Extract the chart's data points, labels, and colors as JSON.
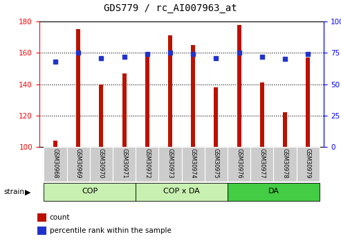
{
  "title": "GDS779 / rc_AI007963_at",
  "samples": [
    "GSM30968",
    "GSM30969",
    "GSM30970",
    "GSM30971",
    "GSM30972",
    "GSM30973",
    "GSM30974",
    "GSM30975",
    "GSM30976",
    "GSM30977",
    "GSM30978",
    "GSM30979"
  ],
  "count_values": [
    104,
    175,
    140,
    147,
    158,
    171,
    165,
    138,
    178,
    141,
    122,
    157
  ],
  "percentile_values": [
    68,
    75,
    71,
    72,
    74,
    75,
    74,
    71,
    75,
    72,
    70,
    74
  ],
  "groups": [
    {
      "label": "COP",
      "start": 0,
      "end": 3,
      "color": "#c8f0b0"
    },
    {
      "label": "COP x DA",
      "start": 4,
      "end": 7,
      "color": "#c8f0b0"
    },
    {
      "label": "DA",
      "start": 8,
      "end": 11,
      "color": "#44cc44"
    }
  ],
  "ylim_left": [
    100,
    180
  ],
  "ylim_right": [
    0,
    100
  ],
  "yticks_left": [
    100,
    120,
    140,
    160,
    180
  ],
  "yticks_right": [
    0,
    25,
    50,
    75,
    100
  ],
  "bar_color": "#bb1100",
  "dot_color": "#2233cc",
  "strain_label": "strain",
  "legend_count": "count",
  "legend_percentile": "percentile rank within the sample",
  "figsize": [
    4.93,
    3.45
  ],
  "dpi": 100
}
